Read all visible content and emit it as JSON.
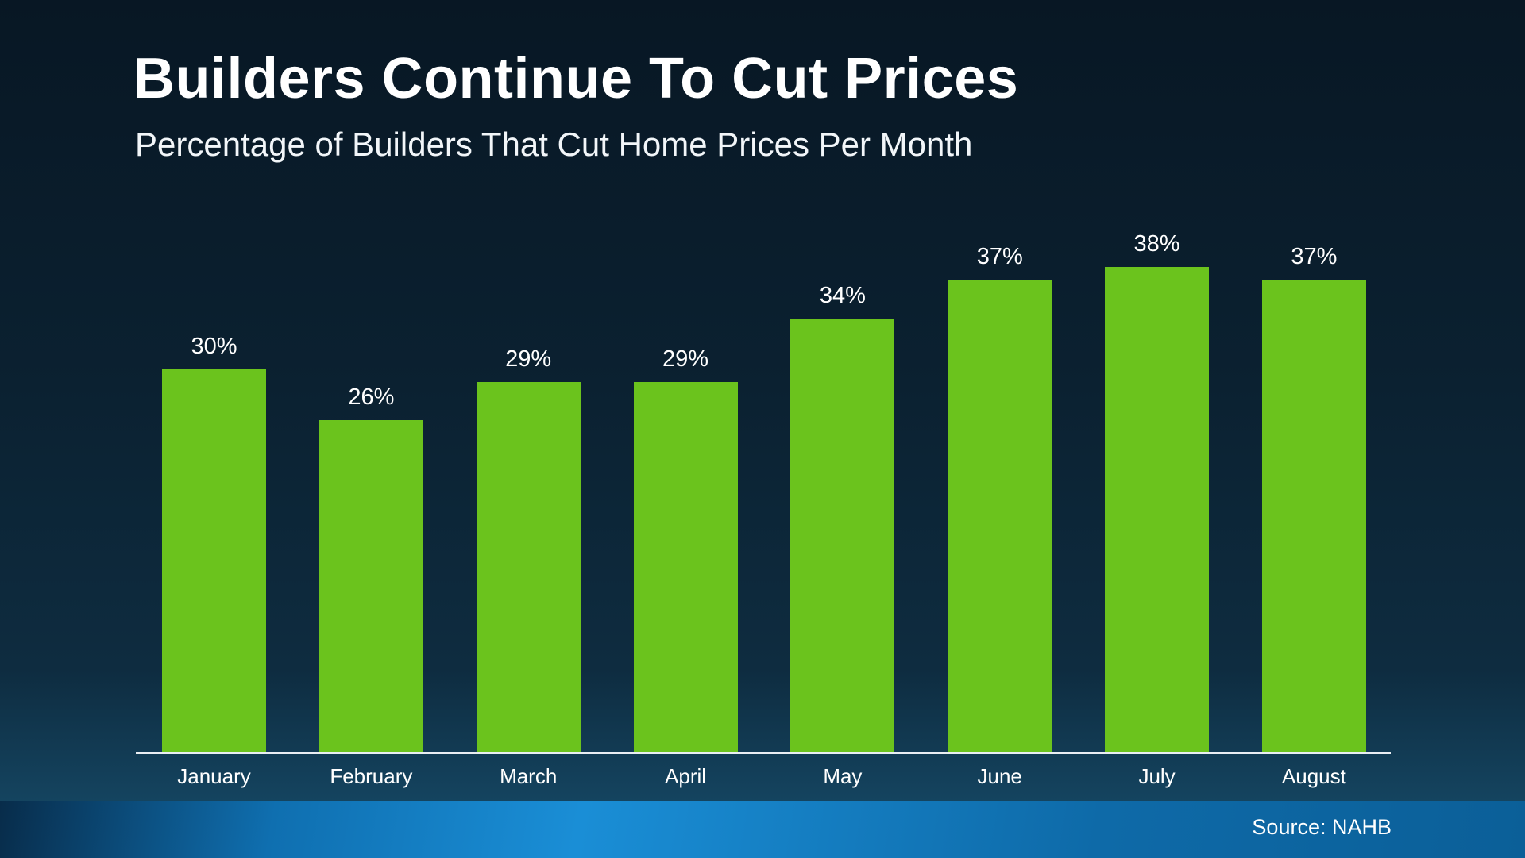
{
  "slide": {
    "title": "Builders Continue To Cut Prices",
    "subtitle": "Percentage of Builders That Cut Home Prices Per Month",
    "source": "Source: NAHB"
  },
  "chart_data": {
    "type": "bar",
    "categories": [
      "January",
      "February",
      "March",
      "April",
      "May",
      "June",
      "July",
      "August"
    ],
    "values": [
      30,
      26,
      29,
      29,
      34,
      37,
      38,
      37
    ],
    "value_labels": [
      "30%",
      "26%",
      "29%",
      "29%",
      "34%",
      "37%",
      "38%",
      "37%"
    ],
    "title": "Builders Continue To Cut Prices",
    "subtitle": "Percentage of Builders That Cut Home Prices Per Month",
    "source": "Source: NAHB",
    "xlabel": "",
    "ylabel": "",
    "ylim": [
      0,
      40
    ],
    "grid": false,
    "legend": "none",
    "bar_color": "#6bc31d",
    "axis_line_color": "#e9eef3",
    "background_top": "#081724",
    "background_bottom": "#174e6d",
    "footer_band_color": "#1a8ed6",
    "text_color": "#ffffff"
  }
}
